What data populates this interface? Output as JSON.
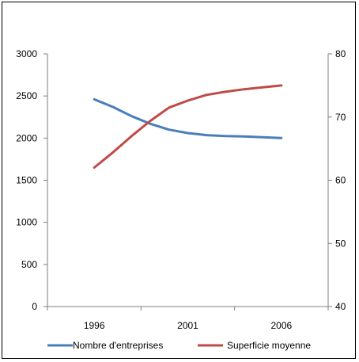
{
  "chart_data": {
    "type": "line",
    "x": [
      1996,
      1997,
      1998,
      1999,
      2000,
      2001,
      2002,
      2003,
      2004,
      2005,
      2006
    ],
    "x_ticks": [
      "1996",
      "2001",
      "2006"
    ],
    "xlim": [
      1993.5,
      2008.5
    ],
    "y_left": {
      "ylim": [
        0,
        3000
      ],
      "ticks": [
        "0",
        "500",
        "1000",
        "1500",
        "2000",
        "2500",
        "3000"
      ]
    },
    "y_right": {
      "ylim": [
        40,
        80
      ],
      "ticks": [
        "40",
        "50",
        "60",
        "70",
        "80"
      ]
    },
    "series": [
      {
        "name": "Nombre d'entreprises",
        "axis": "left",
        "color": "#4a7ebb",
        "values": [
          2460,
          2370,
          2260,
          2170,
          2100,
          2060,
          2035,
          2025,
          2020,
          2010,
          2000
        ]
      },
      {
        "name": "Superficie moyenne",
        "axis": "right",
        "color": "#be4b48",
        "values": [
          62,
          64.4,
          67,
          69.4,
          71.5,
          72.6,
          73.5,
          74,
          74.4,
          74.7,
          75
        ]
      }
    ],
    "legend_position": "bottom",
    "grid": false
  }
}
